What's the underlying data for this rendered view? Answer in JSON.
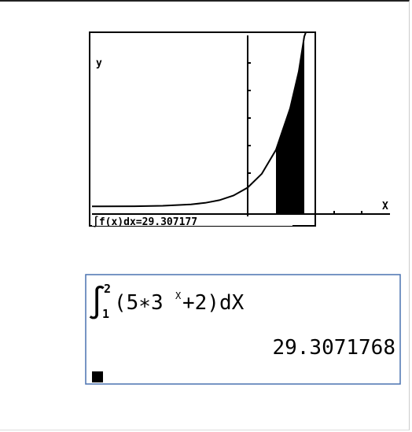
{
  "graph": {
    "y_label": "y",
    "x_label": "X",
    "result": "∫f(x)dx=29.307177"
  },
  "home": {
    "integral_sign": "∫",
    "upper": "2",
    "lower": "1",
    "expression_base": "(5∗3",
    "exponent": "X",
    "expression_rest": "+2)dX",
    "result": "29.3071768"
  }
}
